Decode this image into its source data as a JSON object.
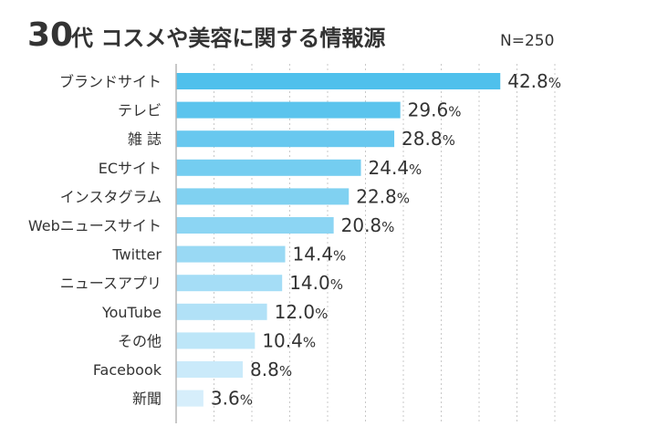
{
  "chart_data": {
    "type": "bar",
    "orientation": "horizontal",
    "title_age": "30",
    "title_rest": "代 コスメや美容に関する情報源",
    "sample_size": "N=250",
    "categories": [
      "ブランドサイト",
      "テレビ",
      "雑 誌",
      "ECサイト",
      "インスタグラム",
      "Webニュースサイト",
      "Twitter",
      "ニュースアプリ",
      "YouTube",
      "その他",
      "Facebook",
      "新聞"
    ],
    "values": [
      42.8,
      29.6,
      28.8,
      24.4,
      22.8,
      20.8,
      14.4,
      14.0,
      12.0,
      10.4,
      8.8,
      3.6
    ],
    "value_labels": [
      "42.8",
      "29.6",
      "28.8",
      "24.4",
      "22.8",
      "20.8",
      "14.4",
      "14.0",
      "12.0",
      "10.4",
      "8.8",
      "3.6"
    ],
    "value_suffix": "%",
    "xlim": [
      0,
      50
    ],
    "grid": true,
    "colors": {
      "bar_dark": "#4fc0ec",
      "bar_light": "#d6eefb",
      "grid": "#c8c8c8",
      "axis": "#b5b5b5",
      "text": "#333333"
    }
  }
}
